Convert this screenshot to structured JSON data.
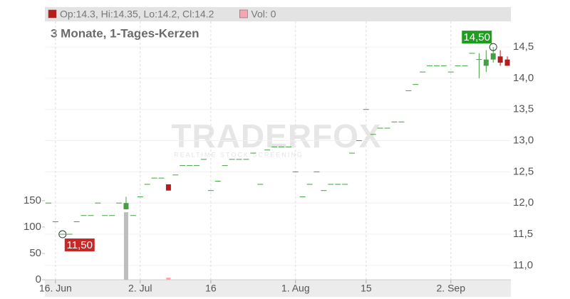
{
  "chart_data": {
    "type": "candlestick",
    "subtitle": "3 Monate, 1-Tages-Kerzen",
    "legend": [
      {
        "text": "Op:14.3, Hi:14.35, Lo:14.2, Cl:14.2",
        "color": "#b71c1c"
      },
      {
        "text": "Vol: 0",
        "color": "#f4a6b4"
      }
    ],
    "watermark": [
      "TRADERFOX",
      "REALTIME STOCK SCREENING"
    ],
    "categories": [
      null,
      "16. Jun",
      null,
      null,
      null,
      null,
      null,
      null,
      null,
      null,
      null,
      null,
      null,
      "2. Jul",
      null,
      null,
      null,
      null,
      null,
      null,
      null,
      null,
      null,
      "16",
      null,
      null,
      null,
      null,
      null,
      null,
      null,
      null,
      null,
      null,
      null,
      "1. Aug",
      null,
      null,
      null,
      null,
      null,
      null,
      null,
      null,
      null,
      "15",
      null,
      null,
      null,
      null,
      null,
      null,
      null,
      null,
      null,
      null,
      null,
      "2. Sep",
      null,
      null,
      null,
      null,
      null,
      null,
      null,
      null
    ],
    "open": [
      12.0,
      11.7,
      11.5,
      11.5,
      11.7,
      11.8,
      11.8,
      12.0,
      11.8,
      11.8,
      12.0,
      11.9,
      11.8,
      12.1,
      12.3,
      12.4,
      12.4,
      12.3,
      12.45,
      12.6,
      12.6,
      12.6,
      12.7,
      12.2,
      12.35,
      12.6,
      12.7,
      12.7,
      12.7,
      12.8,
      12.3,
      12.85,
      12.9,
      12.9,
      12.9,
      12.5,
      12.1,
      12.3,
      12.5,
      12.2,
      12.3,
      12.3,
      12.3,
      12.8,
      13.0,
      13.5,
      13.1,
      13.2,
      13.2,
      13.3,
      13.3,
      13.8,
      13.9,
      14.1,
      14.2,
      14.2,
      14.2,
      14.1,
      14.2,
      14.2,
      14.4,
      14.3,
      14.2,
      14.3,
      14.35,
      14.3
    ],
    "high": [
      12.0,
      11.7,
      11.5,
      11.5,
      11.7,
      11.8,
      11.8,
      12.0,
      11.8,
      11.8,
      12.0,
      12.1,
      11.8,
      12.1,
      12.3,
      12.4,
      12.4,
      12.3,
      12.45,
      12.6,
      12.6,
      12.6,
      12.7,
      12.2,
      12.35,
      12.6,
      12.7,
      12.7,
      12.7,
      12.8,
      12.3,
      12.85,
      12.9,
      12.9,
      12.9,
      12.5,
      12.1,
      12.3,
      12.5,
      12.2,
      12.3,
      12.3,
      12.3,
      12.8,
      13.0,
      13.5,
      13.1,
      13.2,
      13.2,
      13.3,
      13.3,
      13.8,
      13.9,
      14.1,
      14.2,
      14.2,
      14.2,
      14.1,
      14.2,
      14.2,
      14.4,
      14.4,
      14.45,
      14.5,
      14.45,
      14.35
    ],
    "low": [
      12.0,
      11.7,
      11.5,
      11.5,
      11.7,
      11.8,
      11.8,
      12.0,
      11.8,
      11.8,
      12.0,
      11.9,
      11.8,
      12.1,
      12.3,
      12.4,
      12.4,
      12.2,
      12.45,
      12.6,
      12.6,
      12.6,
      12.7,
      12.2,
      12.35,
      12.6,
      12.7,
      12.7,
      12.7,
      12.8,
      12.3,
      12.85,
      12.9,
      12.9,
      12.9,
      12.5,
      12.1,
      12.3,
      12.5,
      12.2,
      12.3,
      12.3,
      12.3,
      12.8,
      13.0,
      13.5,
      13.1,
      13.2,
      13.2,
      13.3,
      13.3,
      13.8,
      13.9,
      14.1,
      14.2,
      14.2,
      14.2,
      14.1,
      14.2,
      14.2,
      14.4,
      14.0,
      14.1,
      14.25,
      14.2,
      14.2
    ],
    "close": [
      12.0,
      11.7,
      11.5,
      11.5,
      11.7,
      11.8,
      11.8,
      12.0,
      11.8,
      11.8,
      12.0,
      12.0,
      11.8,
      12.1,
      12.3,
      12.4,
      12.4,
      12.2,
      12.45,
      12.6,
      12.6,
      12.6,
      12.7,
      12.2,
      12.35,
      12.6,
      12.7,
      12.7,
      12.7,
      12.8,
      12.3,
      12.85,
      12.9,
      12.9,
      12.9,
      12.5,
      12.1,
      12.3,
      12.5,
      12.2,
      12.3,
      12.3,
      12.3,
      12.8,
      13.0,
      13.5,
      13.1,
      13.2,
      13.2,
      13.3,
      13.3,
      13.8,
      13.9,
      14.1,
      14.2,
      14.2,
      14.2,
      14.1,
      14.2,
      14.2,
      14.4,
      14.3,
      14.3,
      14.4,
      14.25,
      14.2
    ],
    "volume": [
      0,
      0,
      0,
      0,
      0,
      0,
      0,
      0,
      0,
      0,
      0,
      128,
      0,
      0,
      0,
      0,
      0,
      4,
      0,
      0,
      0,
      0,
      0,
      0,
      0,
      0,
      0,
      0,
      0,
      0,
      0,
      0,
      0,
      0,
      0,
      0,
      0,
      0,
      0,
      0,
      0,
      0,
      0,
      0,
      0,
      0,
      0,
      0,
      0,
      0,
      0,
      0,
      0,
      0,
      0,
      0,
      0,
      0,
      0,
      0,
      0,
      0,
      0,
      0,
      0,
      0
    ],
    "up_color": "#43a043",
    "down_color": "#b71c1c",
    "volume_up_color": "#bdbdbd",
    "volume_down_color": "#f4a6b4",
    "ylim": [
      10.77,
      15.14
    ],
    "yticks": [
      {
        "value": 11,
        "label": "11,0"
      },
      {
        "value": 11.5,
        "label": "11,5"
      },
      {
        "value": 12,
        "label": "12,0"
      },
      {
        "value": 12.5,
        "label": "12,5"
      },
      {
        "value": 13,
        "label": "13,0"
      },
      {
        "value": 13.5,
        "label": "13,5"
      },
      {
        "value": 14,
        "label": "14,0"
      },
      {
        "value": 14.5,
        "label": "14,5"
      }
    ],
    "y2lim": [
      0,
      517
    ],
    "y2ticks": [
      0,
      50,
      100,
      150
    ],
    "grid": true,
    "annotations": [
      {
        "text": "14,50",
        "value": 14.5,
        "kind": "high",
        "color": "#1e9e1e"
      },
      {
        "text": "11,50",
        "value": 11.5,
        "kind": "low",
        "color": "#c62828"
      }
    ]
  }
}
